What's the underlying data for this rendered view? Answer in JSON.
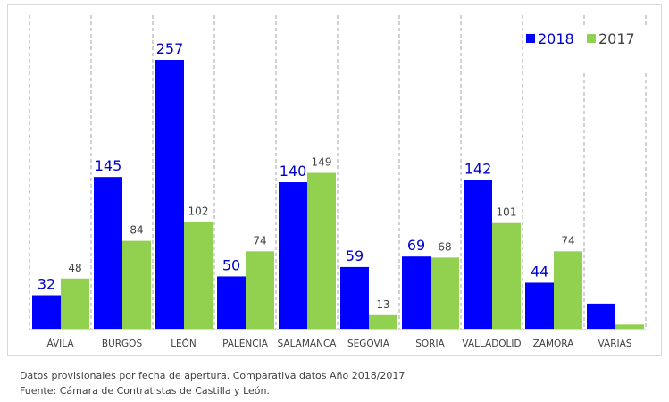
{
  "chart_data": {
    "type": "bar",
    "categories": [
      "ÁVILA",
      "BURGOS",
      "LEÓN",
      "PALENCIA",
      "SALAMANCA",
      "SEGOVIA",
      "SORIA",
      "VALLADOLID",
      "ZAMORA",
      "VARIAS"
    ],
    "series": [
      {
        "name": "2018",
        "color": "#0000ff",
        "values": [
          32,
          145,
          257,
          50,
          140,
          59,
          69,
          142,
          44,
          24
        ],
        "labels": [
          "32",
          "145",
          "257",
          "50",
          "140",
          "59",
          "69",
          "142",
          "44",
          ""
        ]
      },
      {
        "name": "2017",
        "color": "#92d050",
        "values": [
          48,
          84,
          102,
          74,
          149,
          13,
          68,
          101,
          74,
          4
        ],
        "labels": [
          "48",
          "84",
          "102",
          "74",
          "149",
          "13",
          "68",
          "101",
          "74",
          ""
        ]
      }
    ],
    "ylim": [
      0,
      270
    ],
    "grid": "vertical dashed",
    "legend": "top-right"
  },
  "footer": {
    "line1": "Datos provisionales por fecha de apertura. Comparativa datos Año 2018/2017",
    "line2": "Fuente: Cámara de Contratistas de Castilla y León."
  }
}
